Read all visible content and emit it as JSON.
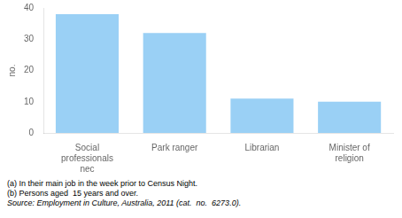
{
  "chart_data": {
    "type": "bar",
    "y_label": "no.",
    "categories": [
      "Social\nprofessionals\nnec",
      "Park ranger",
      "Librarian",
      "Minister of\nreligion"
    ],
    "values": [
      38,
      32,
      11,
      10
    ],
    "ylim": [
      0,
      40
    ],
    "yticks": [
      0,
      10,
      20,
      30,
      40
    ],
    "grid": false,
    "footnotes": [
      "(a) In their main job in the week prior to Census Night.",
      "(b) Persons aged  15 years and over."
    ],
    "source": "Source: Employment in Culture, Australia, 2011 (cat.  no.  6273.0)."
  }
}
